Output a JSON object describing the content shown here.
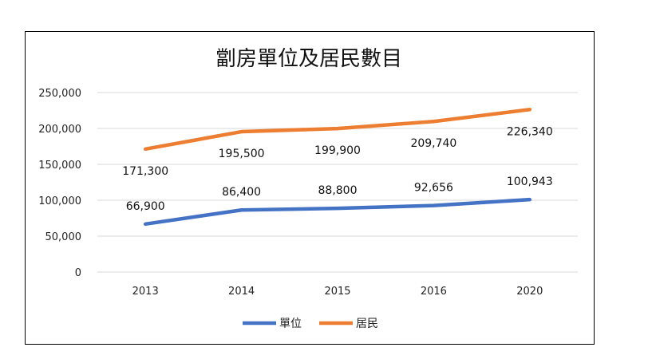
{
  "chart_data": {
    "type": "line",
    "title": "劏房單位及居民數目",
    "categories": [
      "2013",
      "2014",
      "2015",
      "2016",
      "2020"
    ],
    "series": [
      {
        "name": "單位",
        "values": [
          66900,
          86400,
          88800,
          92656,
          100943
        ],
        "labels": [
          "66,900",
          "86,400",
          "88,800",
          "92,656",
          "100,943"
        ],
        "color": "#4472C4"
      },
      {
        "name": "居民",
        "values": [
          171300,
          195500,
          199900,
          209740,
          226340
        ],
        "labels": [
          "171,300",
          "195,500",
          "199,900",
          "209,740",
          "226,340"
        ],
        "color": "#ED7D31"
      }
    ],
    "ylim": [
      0,
      250000
    ],
    "y_ticks": [
      "0",
      "50,000",
      "100,000",
      "150,000",
      "200,000",
      "250,000"
    ],
    "y_tick_values": [
      0,
      50000,
      100000,
      150000,
      200000,
      250000
    ],
    "grid": true,
    "legend_position": "bottom"
  }
}
